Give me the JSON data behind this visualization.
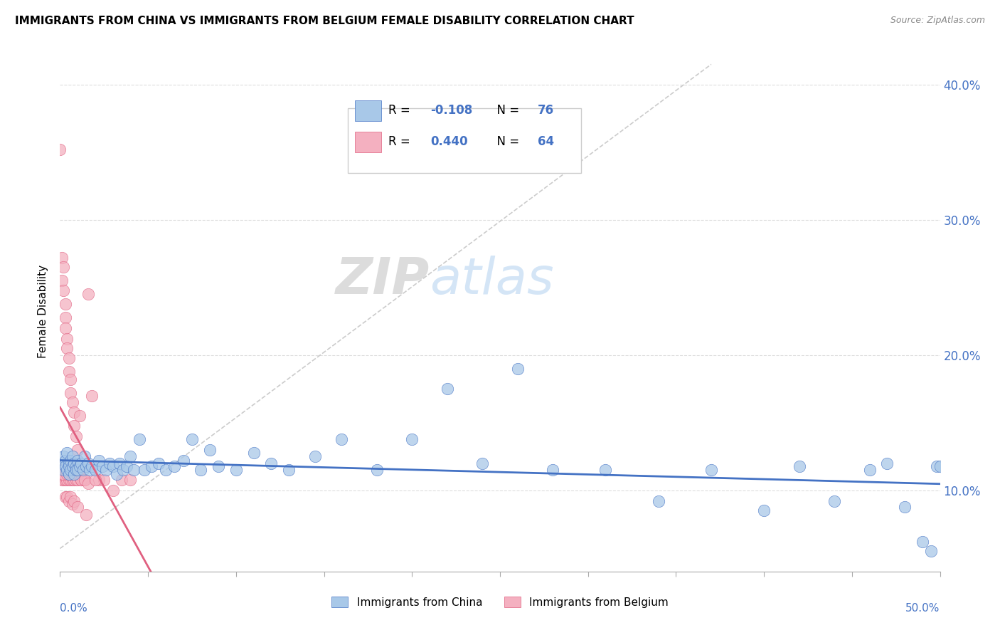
{
  "title": "IMMIGRANTS FROM CHINA VS IMMIGRANTS FROM BELGIUM FEMALE DISABILITY CORRELATION CHART",
  "source": "Source: ZipAtlas.com",
  "ylabel": "Female Disability",
  "yticks": [
    0.1,
    0.2,
    0.3,
    0.4
  ],
  "ytick_labels": [
    "10.0%",
    "20.0%",
    "30.0%",
    "40.0%"
  ],
  "xlim": [
    0.0,
    0.5
  ],
  "ylim": [
    0.04,
    0.425
  ],
  "color_china": "#a8c8e8",
  "color_belgium": "#f4b0c0",
  "color_china_line": "#4472c4",
  "color_belgium_line": "#e06080",
  "color_text_blue": "#4472c4",
  "legend_r_china": "-0.108",
  "legend_n_china": "76",
  "legend_r_belgium": "0.440",
  "legend_n_belgium": "64",
  "china_x": [
    0.001,
    0.002,
    0.002,
    0.003,
    0.003,
    0.004,
    0.004,
    0.005,
    0.005,
    0.005,
    0.006,
    0.006,
    0.007,
    0.007,
    0.008,
    0.008,
    0.009,
    0.009,
    0.01,
    0.01,
    0.011,
    0.012,
    0.013,
    0.014,
    0.015,
    0.016,
    0.017,
    0.018,
    0.02,
    0.022,
    0.024,
    0.026,
    0.028,
    0.03,
    0.032,
    0.034,
    0.036,
    0.038,
    0.04,
    0.042,
    0.045,
    0.048,
    0.052,
    0.056,
    0.06,
    0.065,
    0.07,
    0.075,
    0.08,
    0.085,
    0.09,
    0.1,
    0.11,
    0.12,
    0.13,
    0.145,
    0.16,
    0.18,
    0.2,
    0.22,
    0.24,
    0.26,
    0.28,
    0.31,
    0.34,
    0.37,
    0.4,
    0.42,
    0.44,
    0.46,
    0.47,
    0.48,
    0.49,
    0.495,
    0.498,
    0.5
  ],
  "china_y": [
    0.12,
    0.125,
    0.115,
    0.122,
    0.118,
    0.115,
    0.128,
    0.12,
    0.112,
    0.118,
    0.122,
    0.115,
    0.118,
    0.125,
    0.112,
    0.12,
    0.118,
    0.115,
    0.122,
    0.115,
    0.118,
    0.12,
    0.115,
    0.125,
    0.118,
    0.12,
    0.115,
    0.118,
    0.115,
    0.122,
    0.118,
    0.115,
    0.12,
    0.118,
    0.112,
    0.12,
    0.115,
    0.118,
    0.125,
    0.115,
    0.138,
    0.115,
    0.118,
    0.12,
    0.115,
    0.118,
    0.122,
    0.138,
    0.115,
    0.13,
    0.118,
    0.115,
    0.128,
    0.12,
    0.115,
    0.125,
    0.138,
    0.115,
    0.138,
    0.175,
    0.12,
    0.19,
    0.115,
    0.115,
    0.092,
    0.115,
    0.085,
    0.118,
    0.092,
    0.115,
    0.12,
    0.088,
    0.062,
    0.055,
    0.118,
    0.118
  ],
  "belgium_x": [
    0.0,
    0.001,
    0.001,
    0.001,
    0.002,
    0.002,
    0.002,
    0.003,
    0.003,
    0.003,
    0.003,
    0.004,
    0.004,
    0.004,
    0.005,
    0.005,
    0.005,
    0.006,
    0.006,
    0.006,
    0.007,
    0.007,
    0.008,
    0.008,
    0.008,
    0.009,
    0.009,
    0.01,
    0.01,
    0.011,
    0.012,
    0.013,
    0.014,
    0.016,
    0.018,
    0.022,
    0.025,
    0.03,
    0.035,
    0.04,
    0.0,
    0.001,
    0.002,
    0.003,
    0.004,
    0.005,
    0.006,
    0.007,
    0.008,
    0.009,
    0.01,
    0.011,
    0.012,
    0.014,
    0.016,
    0.02,
    0.003,
    0.004,
    0.005,
    0.006,
    0.007,
    0.008,
    0.01,
    0.015
  ],
  "belgium_y": [
    0.352,
    0.272,
    0.255,
    0.108,
    0.265,
    0.248,
    0.108,
    0.238,
    0.228,
    0.22,
    0.108,
    0.212,
    0.205,
    0.108,
    0.198,
    0.188,
    0.108,
    0.182,
    0.172,
    0.108,
    0.165,
    0.108,
    0.158,
    0.148,
    0.108,
    0.14,
    0.108,
    0.13,
    0.108,
    0.155,
    0.108,
    0.108,
    0.108,
    0.245,
    0.17,
    0.108,
    0.108,
    0.1,
    0.108,
    0.108,
    0.115,
    0.112,
    0.112,
    0.115,
    0.112,
    0.112,
    0.115,
    0.112,
    0.115,
    0.115,
    0.112,
    0.115,
    0.108,
    0.108,
    0.105,
    0.108,
    0.095,
    0.095,
    0.092,
    0.095,
    0.09,
    0.092,
    0.088,
    0.082
  ]
}
